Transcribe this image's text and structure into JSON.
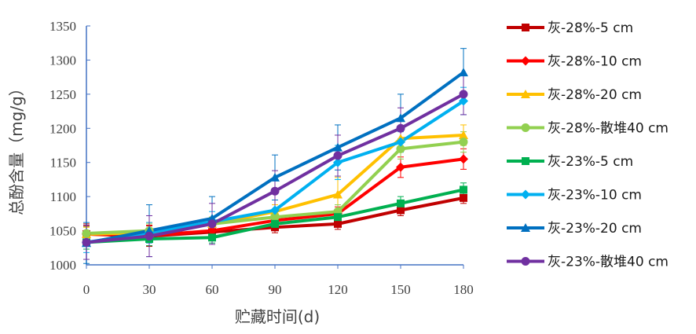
{
  "chart_data": {
    "type": "line",
    "xlabel": "贮藏时间(d)",
    "ylabel": "总酚含量（mg/g）",
    "x": [
      0,
      30,
      60,
      90,
      120,
      150,
      180
    ],
    "xlim": [
      0,
      180
    ],
    "ylim": [
      1000,
      1350
    ],
    "yticks": [
      1000,
      1050,
      1100,
      1150,
      1200,
      1250,
      1300,
      1350
    ],
    "grid": false,
    "legend_position": "right",
    "series": [
      {
        "name": "灰-28%-5 cm",
        "color": "#C00000",
        "marker": "square",
        "values": [
          1045,
          1042,
          1048,
          1055,
          1060,
          1080,
          1098
        ],
        "errors": [
          15,
          15,
          10,
          8,
          8,
          8,
          8
        ]
      },
      {
        "name": "灰-28%-10 cm",
        "color": "#FF0000",
        "marker": "diamond",
        "values": [
          1045,
          1043,
          1050,
          1065,
          1075,
          1143,
          1155
        ],
        "errors": [
          12,
          15,
          10,
          10,
          10,
          15,
          15
        ]
      },
      {
        "name": "灰-28%-20 cm",
        "color": "#FFC000",
        "marker": "triangle",
        "values": [
          1045,
          1047,
          1060,
          1078,
          1103,
          1185,
          1190
        ],
        "errors": [
          10,
          15,
          10,
          10,
          25,
          15,
          15
        ]
      },
      {
        "name": "灰-28%-散堆40 cm",
        "color": "#92D050",
        "marker": "circle",
        "values": [
          1046,
          1050,
          1060,
          1070,
          1078,
          1170,
          1180
        ],
        "errors": [
          10,
          10,
          10,
          10,
          10,
          15,
          15
        ]
      },
      {
        "name": "灰-23%-5 cm",
        "color": "#00B050",
        "marker": "square",
        "values": [
          1033,
          1038,
          1040,
          1060,
          1070,
          1090,
          1110
        ],
        "errors": [
          10,
          10,
          8,
          8,
          8,
          10,
          10
        ]
      },
      {
        "name": "灰-23%-10 cm",
        "color": "#00B0F0",
        "marker": "diamond",
        "values": [
          1033,
          1047,
          1063,
          1080,
          1150,
          1180,
          1240
        ],
        "errors": [
          15,
          15,
          15,
          15,
          25,
          15,
          20
        ]
      },
      {
        "name": "灰-23%-20 cm",
        "color": "#0070C0",
        "marker": "triangle",
        "values": [
          1032,
          1050,
          1068,
          1128,
          1172,
          1215,
          1282
        ],
        "errors": [
          30,
          38,
          32,
          33,
          33,
          35,
          35
        ]
      },
      {
        "name": "灰-23%-散堆40 cm",
        "color": "#7030A0",
        "marker": "circle",
        "values": [
          1033,
          1042,
          1060,
          1108,
          1160,
          1200,
          1250
        ],
        "errors": [
          25,
          30,
          30,
          30,
          30,
          30,
          30
        ]
      }
    ]
  }
}
